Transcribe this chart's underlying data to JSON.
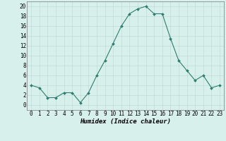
{
  "x": [
    0,
    1,
    2,
    3,
    4,
    5,
    6,
    7,
    8,
    9,
    10,
    11,
    12,
    13,
    14,
    15,
    16,
    17,
    18,
    19,
    20,
    21,
    22,
    23
  ],
  "y": [
    4,
    3.5,
    1.5,
    1.5,
    2.5,
    2.5,
    0.5,
    2.5,
    6,
    9,
    12.5,
    16,
    18.5,
    19.5,
    20,
    18.5,
    18.5,
    13.5,
    9,
    7,
    5,
    6,
    3.5,
    4
  ],
  "line_color": "#2e7d6e",
  "marker": "D",
  "marker_size": 2.0,
  "bg_color": "#d8f0ec",
  "grid_color": "#c0dcd8",
  "grid_major_color": "#b8c8c4",
  "xlabel": "Humidex (Indice chaleur)",
  "ylim": [
    -1,
    21
  ],
  "xlim": [
    -0.5,
    23.5
  ],
  "yticks": [
    0,
    2,
    4,
    6,
    8,
    10,
    12,
    14,
    16,
    18,
    20
  ],
  "xticks": [
    0,
    1,
    2,
    3,
    4,
    5,
    6,
    7,
    8,
    9,
    10,
    11,
    12,
    13,
    14,
    15,
    16,
    17,
    18,
    19,
    20,
    21,
    22,
    23
  ],
  "tick_fontsize": 5.5,
  "xlabel_fontsize": 6.5
}
